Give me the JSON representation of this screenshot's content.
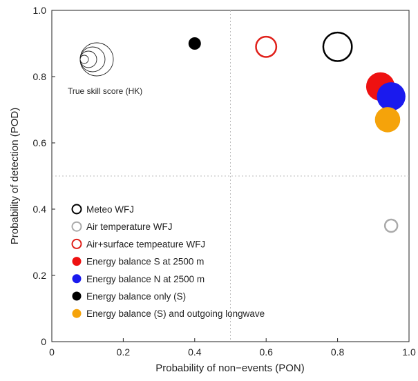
{
  "chart_data": {
    "type": "scatter",
    "title": "",
    "xlabel": "Probability of non−events (PON)",
    "ylabel": "Probability of detection (POD)",
    "xlim": [
      0,
      1
    ],
    "ylim": [
      0,
      1
    ],
    "xticks": [
      "0",
      "0.2",
      "0.4",
      "0.6",
      "0.8",
      "1.0"
    ],
    "yticks": [
      "0",
      "0.2",
      "0.4",
      "0.6",
      "0.8",
      "1.0"
    ],
    "reference_lines": {
      "x": 0.5,
      "y": 0.5,
      "style": "dotted"
    },
    "grid": false,
    "legend_placement": "lower-left",
    "marker_size_note": "True skill score (HK)",
    "series": [
      {
        "name": "Meteo WFJ",
        "color": "#000000",
        "filled": false,
        "points": [
          {
            "x": 0.8,
            "y": 0.89,
            "hk": 0.69
          }
        ]
      },
      {
        "name": "Air temperature WFJ",
        "color": "#aaaaaa",
        "filled": false,
        "points": [
          {
            "x": 0.95,
            "y": 0.35,
            "hk": 0.3
          }
        ]
      },
      {
        "name": "Air+surface tempeature WFJ",
        "color": "#e0201a",
        "filled": false,
        "points": [
          {
            "x": 0.6,
            "y": 0.89,
            "hk": 0.49
          }
        ]
      },
      {
        "name": "Energy balance S at 2500 m",
        "color": "#ee1111",
        "filled": true,
        "points": [
          {
            "x": 0.92,
            "y": 0.77,
            "hk": 0.69
          }
        ]
      },
      {
        "name": "Energy balance N at 2500 m",
        "color": "#1a1aee",
        "filled": true,
        "points": [
          {
            "x": 0.95,
            "y": 0.74,
            "hk": 0.69
          }
        ]
      },
      {
        "name": "Energy balance only (S)",
        "color": "#000000",
        "filled": true,
        "points": [
          {
            "x": 0.4,
            "y": 0.9,
            "hk": 0.3
          }
        ]
      },
      {
        "name": "Energy balance (S) and outgoing longwave",
        "color": "#f5a30a",
        "filled": true,
        "points": [
          {
            "x": 0.94,
            "y": 0.67,
            "hk": 0.61
          }
        ]
      }
    ],
    "size_key": {
      "hk_values": [
        0.2,
        0.4,
        0.6,
        0.8
      ]
    }
  }
}
